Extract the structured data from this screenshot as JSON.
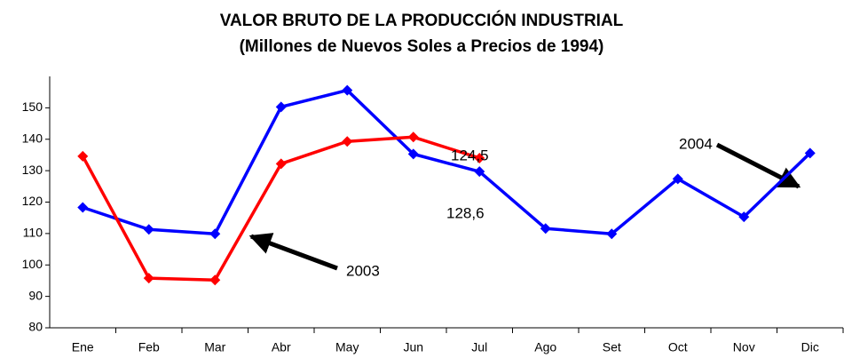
{
  "chart_data": {
    "type": "line",
    "title": "VALOR BRUTO DE LA PRODUCCIÓN INDUSTRIAL",
    "subtitle": "(Millones de Nuevos Soles a Precios de 1994)",
    "categories": [
      "Ene",
      "Feb",
      "Mar",
      "Abr",
      "May",
      "Jun",
      "Jul",
      "Ago",
      "Set",
      "Oct",
      "Nov",
      "Dic"
    ],
    "series": [
      {
        "name": "2003",
        "color": "#0000ff",
        "values": [
          118.3,
          111.3,
          109.9,
          150.3,
          155.6,
          135.3,
          129.7,
          111.6,
          109.9,
          127.4,
          115.3,
          135.6
        ]
      },
      {
        "name": "2004",
        "color": "#ff0000",
        "values": [
          134.6,
          95.8,
          95.2,
          132.2,
          139.3,
          140.7,
          134.0,
          null,
          null,
          null,
          null,
          null
        ]
      }
    ],
    "annotations": [
      "124,5",
      "128,6"
    ],
    "ylim": [
      80,
      160
    ],
    "yticks": [
      80,
      90,
      100,
      110,
      120,
      130,
      140,
      150
    ],
    "grid": false
  }
}
